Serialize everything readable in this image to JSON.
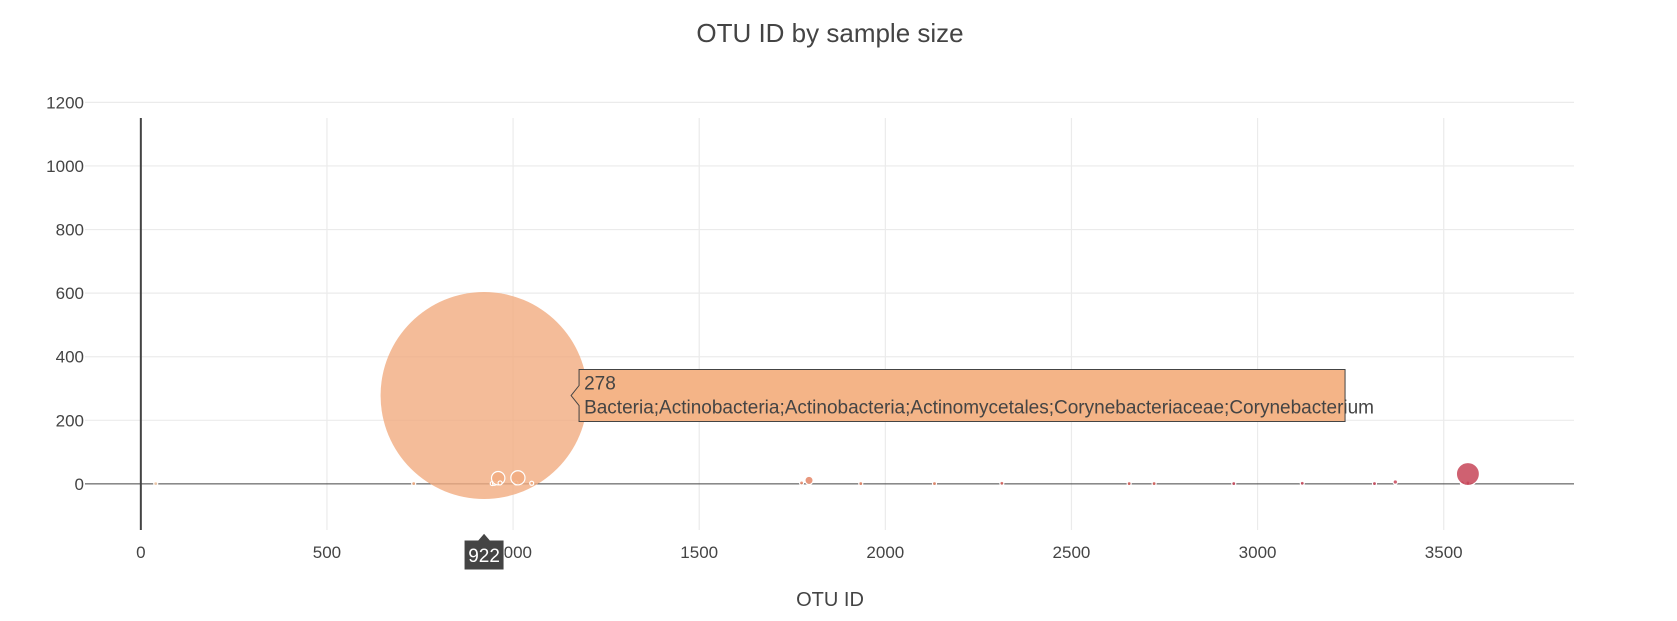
{
  "chart_data": {
    "type": "scatter",
    "title": "OTU ID by sample size",
    "xlabel": "OTU ID",
    "ylabel": "",
    "xlim": [
      -150,
      3850
    ],
    "ylim": [
      -145,
      1220
    ],
    "x_ticks": [
      0,
      500,
      1000,
      1500,
      2000,
      2500,
      3000,
      3500
    ],
    "y_ticks": [
      0,
      200,
      400,
      600,
      800,
      1000,
      1200
    ],
    "grid": true,
    "legend": "none",
    "colorscale": [
      "#f7cfae",
      "#f1ab80",
      "#e48566",
      "#d5605a",
      "#c74558"
    ],
    "bubbles": [
      {
        "x": 40,
        "y": 1,
        "size": 1
      },
      {
        "x": 733,
        "y": 1,
        "size": 2
      },
      {
        "x": 922,
        "y": 278,
        "size": 278,
        "label": "Bacteria;Actinobacteria;Actinobacteria;Actinomycetales;Corynebacteriaceae;Corynebacterium"
      },
      {
        "x": 944,
        "y": 1,
        "size": 2
      },
      {
        "x": 950,
        "y": 2,
        "size": 2
      },
      {
        "x": 960,
        "y": 18,
        "size": 18
      },
      {
        "x": 965,
        "y": 3,
        "size": 3
      },
      {
        "x": 1008,
        "y": 3,
        "size": 3
      },
      {
        "x": 1013,
        "y": 19,
        "size": 19
      },
      {
        "x": 1050,
        "y": 2,
        "size": 2
      },
      {
        "x": 1775,
        "y": 3,
        "size": 3
      },
      {
        "x": 1795,
        "y": 11,
        "size": 11
      },
      {
        "x": 1934,
        "y": 1,
        "size": 1
      },
      {
        "x": 2132,
        "y": 1,
        "size": 1
      },
      {
        "x": 2313,
        "y": 2,
        "size": 2
      },
      {
        "x": 2655,
        "y": 1,
        "size": 1
      },
      {
        "x": 2722,
        "y": 1,
        "size": 1
      },
      {
        "x": 2936,
        "y": 1,
        "size": 1
      },
      {
        "x": 3120,
        "y": 2,
        "size": 2
      },
      {
        "x": 3314,
        "y": 1,
        "size": 1
      },
      {
        "x": 3370,
        "y": 6,
        "size": 6
      },
      {
        "x": 3550,
        "y": 3,
        "size": 3
      },
      {
        "x": 3565,
        "y": 3,
        "size": 3
      },
      {
        "x": 3565,
        "y": 31,
        "size": 31
      }
    ],
    "hover": {
      "x": 922,
      "y": 278,
      "value": "278",
      "label": "Bacteria;Actinobacteria;Actinobacteria;Actinomycetales;Corynebacteriaceae;Corynebacterium",
      "x_value": "922"
    }
  }
}
